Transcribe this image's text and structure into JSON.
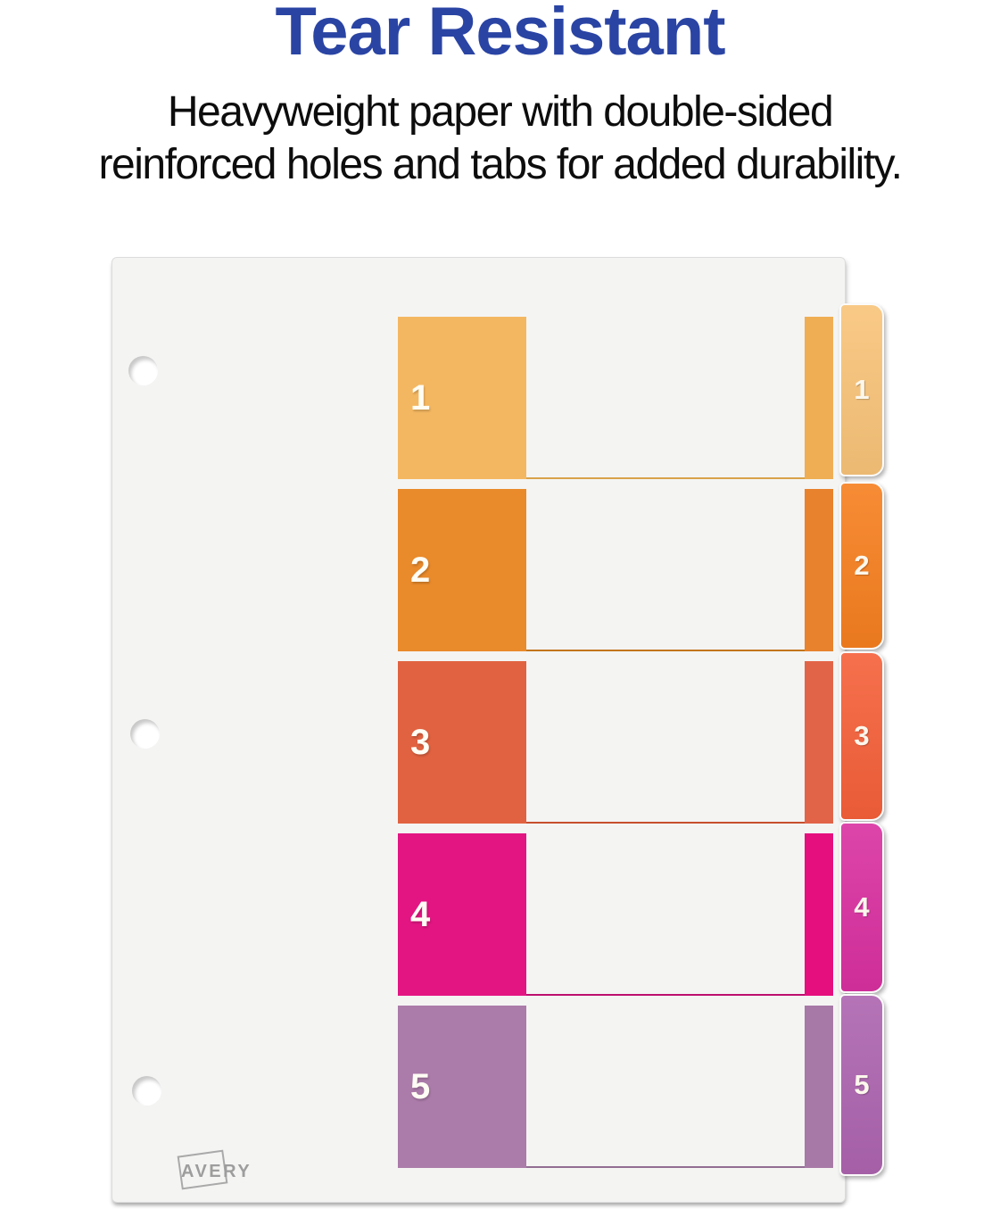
{
  "header": {
    "title": "Tear Resistant",
    "title_color": "#2a44a4",
    "subtitle_lines": [
      "Heavyweight paper with double-sided",
      "reinforced holes and tabs for added durability."
    ],
    "subtitle_color": "#0d0d0d"
  },
  "divider": {
    "brand": "AVERY",
    "sheet_color": "#f4f4f3",
    "rows": [
      {
        "label": "1",
        "block_color": "#f4b761",
        "strip_color": "#efae54",
        "tab_color": "#f8c378",
        "line_color": "#d8a24b"
      },
      {
        "label": "2",
        "block_color": "#e98a2b",
        "strip_color": "#e8822c",
        "tab_color": "#f67f1f",
        "line_color": "#c2751a"
      },
      {
        "label": "3",
        "block_color": "#e16240",
        "strip_color": "#e26448",
        "tab_color": "#f56039",
        "line_color": "#c54f2e"
      },
      {
        "label": "4",
        "block_color": "#e31583",
        "strip_color": "#e50f7e",
        "tab_color": "#d930a0",
        "line_color": "#bd0e6e"
      },
      {
        "label": "5",
        "block_color": "#ab7ba9",
        "strip_color": "#a779a6",
        "tab_color": "#ad64af",
        "line_color": "#916d92"
      }
    ]
  }
}
